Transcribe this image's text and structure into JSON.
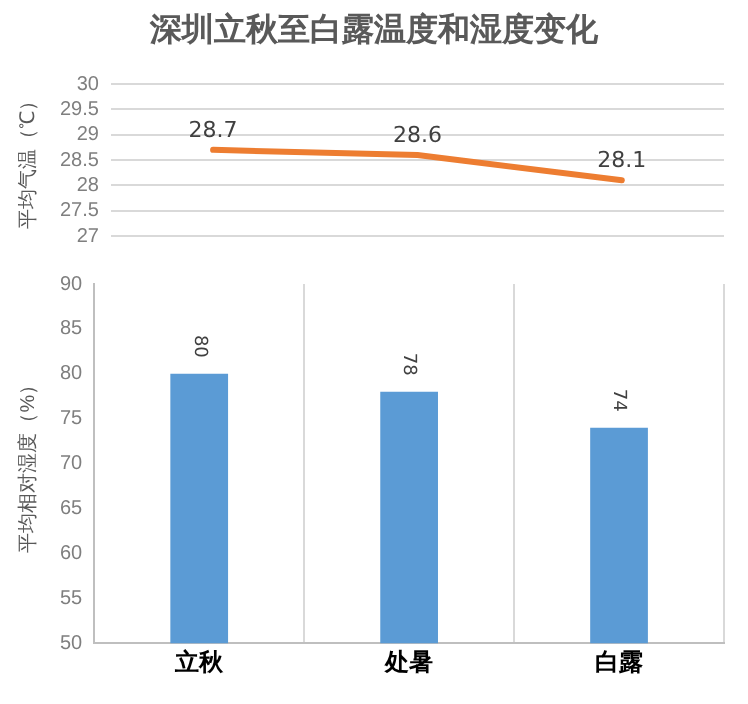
{
  "chart_data": [
    {
      "type": "line",
      "title": "深圳立秋至白露温度和湿度变化",
      "ylabel": "平均气温（℃）",
      "categories": [
        null,
        null,
        null
      ],
      "series": [
        {
          "color": "#ed7d31",
          "values": [
            28.7,
            28.6,
            28.1
          ]
        }
      ],
      "ylim": [
        27,
        30
      ],
      "yticks": [
        27,
        27.5,
        28,
        28.5,
        29,
        29.5,
        30
      ],
      "grid": "y",
      "legend": false,
      "marker": "none",
      "line_style": "solid",
      "data_labels": true,
      "tick_labels": "y"
    },
    {
      "type": "bar",
      "ylabel": "平均相对湿度（%）",
      "categories": [
        "立秋",
        "处暑",
        "白露"
      ],
      "series": [
        {
          "color": "#5b9bd5",
          "values": [
            80,
            78,
            74
          ]
        }
      ],
      "ylim": [
        50,
        90
      ],
      "yticks": [
        50,
        55,
        60,
        65,
        70,
        75,
        80,
        85,
        90
      ],
      "grid": "x",
      "legend": false,
      "data_labels": true
    }
  ]
}
